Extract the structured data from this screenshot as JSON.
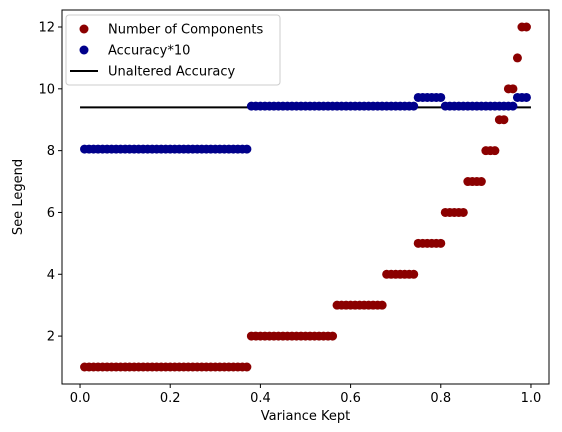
{
  "chart_data": {
    "type": "scatter",
    "xlabel": "Variance Kept",
    "ylabel": "See Legend",
    "xlim": [
      -0.04,
      1.04
    ],
    "ylim": [
      0.45,
      12.55
    ],
    "xticks": [
      0.0,
      0.2,
      0.4,
      0.6,
      0.8,
      1.0
    ],
    "xtick_labels": [
      "0.0",
      "0.2",
      "0.4",
      "0.6",
      "0.8",
      "1.0"
    ],
    "yticks": [
      2,
      4,
      6,
      8,
      10,
      12
    ],
    "ytick_labels": [
      "2",
      "4",
      "6",
      "8",
      "10",
      "12"
    ],
    "grid": false,
    "legend_position": "top-left",
    "series": [
      {
        "name": "Number of Components",
        "kind": "scatter",
        "color": "#8b0000",
        "points": [
          {
            "range": [
              0.01,
              0.37
            ],
            "y": 1
          },
          {
            "range": [
              0.38,
              0.56
            ],
            "y": 2
          },
          {
            "range": [
              0.57,
              0.67
            ],
            "y": 3
          },
          {
            "range": [
              0.68,
              0.74
            ],
            "y": 4
          },
          {
            "range": [
              0.75,
              0.8
            ],
            "y": 5
          },
          {
            "range": [
              0.81,
              0.85
            ],
            "y": 6
          },
          {
            "range": [
              0.86,
              0.89
            ],
            "y": 7
          },
          {
            "range": [
              0.9,
              0.92
            ],
            "y": 8
          },
          {
            "range": [
              0.93,
              0.94
            ],
            "y": 9
          },
          {
            "range": [
              0.95,
              0.96
            ],
            "y": 10
          },
          {
            "range": [
              0.97,
              0.97
            ],
            "y": 11
          },
          {
            "range": [
              0.98,
              0.99
            ],
            "y": 12
          }
        ]
      },
      {
        "name": "Accuracy*10",
        "kind": "scatter",
        "color": "#00008b",
        "points": [
          {
            "range": [
              0.01,
              0.37
            ],
            "y": 8.05
          },
          {
            "range": [
              0.38,
              0.74
            ],
            "y": 9.44
          },
          {
            "range": [
              0.75,
              0.8
            ],
            "y": 9.72
          },
          {
            "range": [
              0.81,
              0.96
            ],
            "y": 9.44
          },
          {
            "range": [
              0.97,
              0.99
            ],
            "y": 9.72
          }
        ]
      },
      {
        "name": "Unaltered Accuracy",
        "kind": "line",
        "color": "#000000",
        "x": [
          0.0,
          1.0
        ],
        "y": [
          9.4,
          9.4
        ]
      }
    ]
  }
}
